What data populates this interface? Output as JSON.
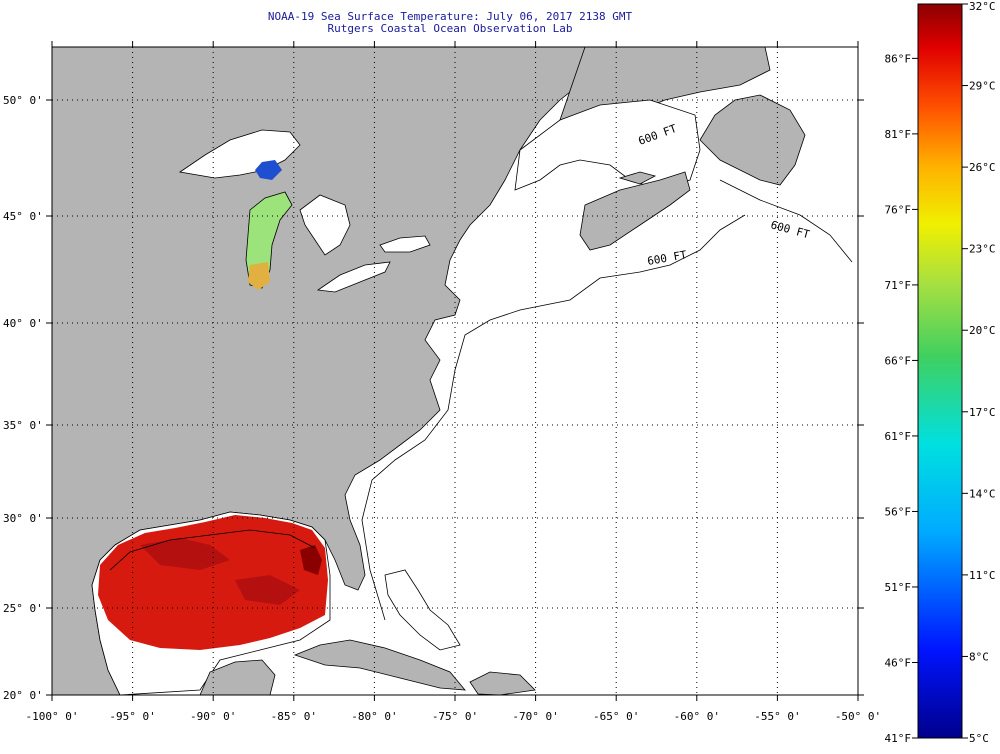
{
  "title": {
    "line1": "NOAA-19 Sea Surface Temperature:  July 06, 2017 2138 GMT",
    "line2": "Rutgers Coastal Ocean Observation Lab"
  },
  "map": {
    "lon_labels": [
      "-100° 0'",
      "-95° 0'",
      "-90° 0'",
      "-85° 0'",
      "-80° 0'",
      "-75° 0'",
      "-70° 0'",
      "-65° 0'",
      "-60° 0'",
      "-55° 0'",
      "-50° 0'"
    ],
    "lat_labels": [
      "50° 0'",
      "45° 0'",
      "40° 0'",
      "35° 0'",
      "30° 0'",
      "25° 0'",
      "20° 0'"
    ],
    "contour_label": "600 FT",
    "colors": {
      "land": "#b4b4b4",
      "ocean": "#ffffff",
      "grid": "#000000"
    }
  },
  "colorbar": {
    "fahrenheit_labels": [
      "86°F",
      "81°F",
      "76°F",
      "71°F",
      "66°F",
      "61°F",
      "56°F",
      "51°F",
      "46°F",
      "41°F"
    ],
    "celsius_labels": [
      "32°C",
      "29°C",
      "26°C",
      "23°C",
      "20°C",
      "17°C",
      "14°C",
      "11°C",
      "8°C",
      "5°C"
    ],
    "range_c": [
      5,
      32
    ]
  }
}
